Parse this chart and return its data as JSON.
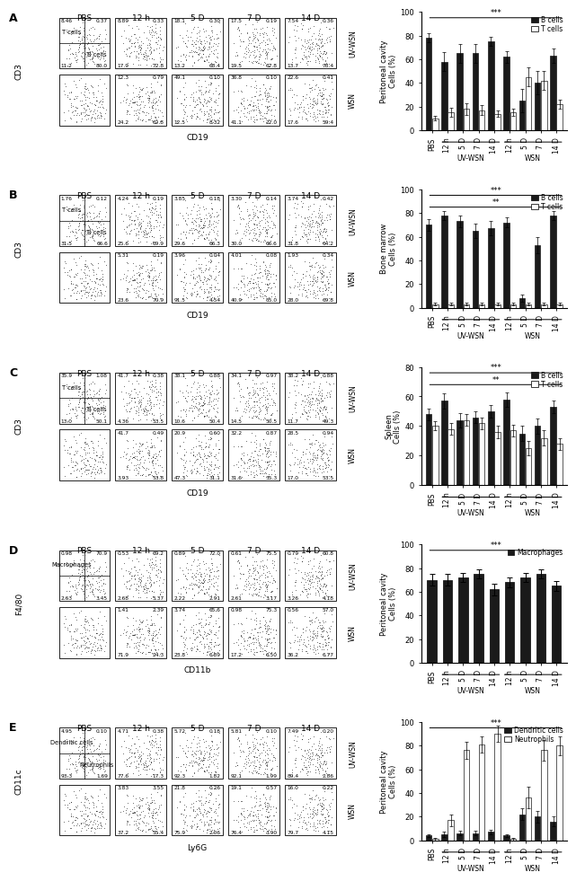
{
  "panel_A": {
    "ylabel": "Peritoneal cavity\nCells (%)",
    "categories": [
      "PBS",
      "12 h",
      "5 D",
      "7 D",
      "14 D",
      "12 h",
      "5 D",
      "7 D",
      "14 D"
    ],
    "B_cells": [
      78,
      58,
      65,
      65,
      75,
      62,
      25,
      40,
      63
    ],
    "T_cells": [
      10,
      15,
      18,
      17,
      14,
      15,
      45,
      42,
      22
    ],
    "B_err": [
      4,
      8,
      8,
      8,
      4,
      5,
      10,
      10,
      6
    ],
    "T_err": [
      2,
      4,
      5,
      4,
      3,
      3,
      8,
      8,
      4
    ],
    "ylim": [
      0,
      100
    ]
  },
  "panel_B": {
    "ylabel": "Bone marrow\nCells (%)",
    "categories": [
      "PBS",
      "12 h",
      "5 D",
      "7 D",
      "14 D",
      "12 h",
      "5 D",
      "7 D",
      "14 D"
    ],
    "B_cells": [
      70,
      78,
      73,
      65,
      67,
      72,
      8,
      53,
      78
    ],
    "T_cells": [
      3,
      3,
      3,
      3,
      3,
      3,
      3,
      3,
      3
    ],
    "B_err": [
      5,
      4,
      5,
      6,
      6,
      4,
      3,
      7,
      4
    ],
    "T_err": [
      1,
      1,
      1,
      1,
      1,
      1,
      1,
      1,
      1
    ],
    "ylim": [
      0,
      100
    ]
  },
  "panel_C": {
    "ylabel": "Spleen\nCells (%)",
    "categories": [
      "PBS",
      "12 h",
      "5 D",
      "7 D",
      "14 D",
      "12 h",
      "5 D",
      "7 D",
      "14 D"
    ],
    "B_cells": [
      48,
      57,
      44,
      46,
      50,
      58,
      35,
      40,
      53
    ],
    "T_cells": [
      40,
      38,
      44,
      42,
      36,
      37,
      25,
      32,
      28
    ],
    "B_err": [
      4,
      5,
      5,
      4,
      4,
      5,
      5,
      5,
      4
    ],
    "T_err": [
      3,
      4,
      4,
      4,
      4,
      4,
      5,
      5,
      4
    ],
    "ylim": [
      0,
      80
    ]
  },
  "panel_D": {
    "ylabel": "Peritoneal cavity\nCells (%)",
    "categories": [
      "PBS",
      "12 h",
      "5 D",
      "7 D",
      "14 D",
      "12 h",
      "5 D",
      "7 D",
      "14 D"
    ],
    "Mac": [
      70,
      70,
      72,
      75,
      62,
      68,
      72,
      75,
      65
    ],
    "Mac_err": [
      5,
      5,
      4,
      4,
      5,
      4,
      4,
      4,
      4
    ],
    "ylim": [
      0,
      100
    ]
  },
  "panel_E": {
    "ylabel": "Peritoneal cavity\nCells (%)",
    "categories": [
      "PBS",
      "12 h",
      "5 D",
      "7 D",
      "14 D",
      "12 h",
      "5 D",
      "7 D",
      "14 D"
    ],
    "DC": [
      4,
      5,
      6,
      6,
      7,
      4,
      22,
      20,
      16
    ],
    "Neu": [
      1,
      17,
      76,
      81,
      90,
      1,
      36,
      76,
      80
    ],
    "DC_err": [
      1,
      2,
      2,
      2,
      2,
      1,
      5,
      5,
      4
    ],
    "Neu_err": [
      1,
      5,
      7,
      7,
      7,
      1,
      9,
      9,
      8
    ],
    "ylim": [
      0,
      100
    ]
  },
  "A_quads_top": [
    [
      "8.46",
      "0.37",
      "11.2",
      "80.0"
    ],
    [
      "8.89",
      "0.33",
      "17.9",
      "72.8"
    ],
    [
      "18.1",
      "0.30",
      "13.2",
      "68.4"
    ],
    [
      "17.5",
      "0.19",
      "19.5",
      "62.8"
    ],
    [
      "7.54",
      "0.36",
      "13.7",
      "78.4"
    ]
  ],
  "A_quads_bot": [
    null,
    [
      "12.3",
      "0.79",
      "24.2",
      "62.8"
    ],
    [
      "49.1",
      "0.10",
      "12.5",
      "8.32"
    ],
    [
      "36.8",
      "0.10",
      "41.1",
      "22.0"
    ],
    [
      "22.6",
      "0.41",
      "17.6",
      "59.4"
    ]
  ],
  "B_quads_top": [
    [
      "1.76",
      "0.12",
      "31.5",
      "66.6"
    ],
    [
      "4.24",
      "0.19",
      "25.6",
      "69.9"
    ],
    [
      "3.85",
      "0.18",
      "29.6",
      "66.3"
    ],
    [
      "3.30",
      "0.14",
      "30.0",
      "66.6"
    ],
    [
      "3.74",
      "0.42",
      "31.8",
      "64.2"
    ]
  ],
  "B_quads_bot": [
    null,
    [
      "5.31",
      "0.19",
      "23.6",
      "70.9"
    ],
    [
      "3.96",
      "0.04",
      "91.5",
      "4.54"
    ],
    [
      "4.01",
      "0.08",
      "40.9",
      "55.0"
    ],
    [
      "1.93",
      "0.34",
      "28.0",
      "69.8"
    ]
  ],
  "C_quads_top": [
    [
      "35.9",
      "1.08",
      "13.0",
      "50.1"
    ],
    [
      "41.7",
      "0.38",
      "4.36",
      "53.5"
    ],
    [
      "38.1",
      "0.88",
      "10.6",
      "50.4"
    ],
    [
      "34.1",
      "0.97",
      "14.5",
      "50.5"
    ],
    [
      "38.2",
      "0.88",
      "11.7",
      "49.3"
    ]
  ],
  "C_quads_bot": [
    null,
    [
      "41.7",
      "0.49",
      "3.93",
      "53.8"
    ],
    [
      "20.9",
      "0.60",
      "47.3",
      "31.1"
    ],
    [
      "32.2",
      "0.87",
      "31.6",
      "35.3"
    ],
    [
      "28.5",
      "0.94",
      "17.0",
      "53.5"
    ]
  ],
  "D_quads_top": [
    [
      "0.98",
      "70.9",
      "2.63",
      "3.45"
    ],
    [
      "0.53",
      "69.2",
      "2.68",
      "5.37"
    ],
    [
      "0.89",
      "72.0",
      "2.22",
      "2.91"
    ],
    [
      "0.61",
      "75.5",
      "2.61",
      "3.17"
    ],
    [
      "0.79",
      "60.8",
      "3.26",
      "4.18"
    ]
  ],
  "D_quads_bot": [
    null,
    [
      "1.41",
      "2.39",
      "71.9",
      "24.3"
    ],
    [
      "3.74",
      "65.6",
      "23.8",
      "6.89"
    ],
    [
      "0.98",
      "75.3",
      "17.2",
      "6.50"
    ],
    [
      "0.56",
      "57.0",
      "36.2",
      "6.77"
    ]
  ],
  "E_quads_top": [
    [
      "4.95",
      "0.10",
      "93.3",
      "1.69"
    ],
    [
      "4.71",
      "0.38",
      "77.6",
      "17.3"
    ],
    [
      "5.72",
      "0.18",
      "92.3",
      "1.82"
    ],
    [
      "5.81",
      "0.10",
      "92.1",
      "1.99"
    ],
    [
      "7.49",
      "0.20",
      "89.4",
      "2.86"
    ]
  ],
  "E_quads_bot": [
    null,
    [
      "3.83",
      "3.55",
      "37.2",
      "55.4"
    ],
    [
      "21.8",
      "0.26",
      "75.9",
      "2.06"
    ],
    [
      "19.1",
      "0.57",
      "76.4",
      "3.90"
    ],
    [
      "16.0",
      "0.22",
      "79.7",
      "4.15"
    ]
  ],
  "col_labels": [
    "PBS",
    "12 h",
    "5 D",
    "7 D",
    "14 D"
  ],
  "row_side_labels": [
    "UV-WSN",
    "WSN"
  ],
  "panel_letters": [
    "A",
    "B",
    "C",
    "D",
    "E"
  ],
  "dot_xlabels": [
    "CD19",
    "CD19",
    "CD19",
    "CD11b",
    "Ly6G"
  ],
  "dot_ylabels": [
    "CD3",
    "CD3",
    "CD3",
    "F4/80",
    "CD11c"
  ],
  "dot_box_labels_top": [
    [
      "T cells",
      ""
    ],
    [
      "T cells",
      ""
    ],
    [
      "T cells",
      ""
    ],
    [
      "Macrophages",
      ""
    ],
    [
      "Dendritic cells",
      ""
    ]
  ],
  "dot_box_labels_bot": [
    [
      "",
      "B cells"
    ],
    [
      "",
      "B cells"
    ],
    [
      "",
      "B cells"
    ],
    [
      "",
      ""
    ],
    [
      "",
      "Neutrophils"
    ]
  ],
  "bar_legends": [
    [
      [
        "B cells",
        "black"
      ],
      [
        "T cells",
        "white"
      ]
    ],
    [
      [
        "B cells",
        "black"
      ],
      [
        "T cells",
        "white"
      ]
    ],
    [
      [
        "B cells",
        "black"
      ],
      [
        "T cells",
        "white"
      ]
    ],
    [
      [
        "Macrophages",
        "black"
      ]
    ],
    [
      [
        "Dendritic cells",
        "black"
      ],
      [
        "Neutrophils",
        "white"
      ]
    ]
  ],
  "sig_brackets": [
    [
      [
        "***",
        0,
        8
      ]
    ],
    [
      [
        "***",
        0,
        8
      ],
      [
        "**",
        0,
        8
      ]
    ],
    [
      [
        "***",
        0,
        8
      ],
      [
        "**",
        0,
        8
      ]
    ],
    [
      [
        "***",
        0,
        8
      ]
    ],
    [
      [
        "***",
        0,
        8
      ]
    ]
  ],
  "UV_WSN_label": "UV-WSN",
  "WSN_label": "WSN",
  "bar_color_black": "#1a1a1a",
  "bar_color_white": "#ffffff",
  "bar_edge": "#1a1a1a"
}
